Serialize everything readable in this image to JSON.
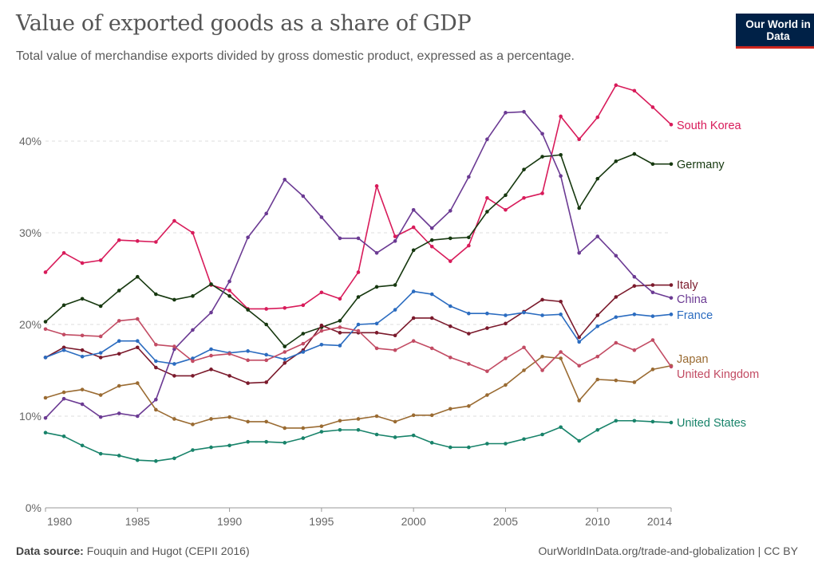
{
  "header": {
    "title": "Value of exported goods as a share of GDP",
    "subtitle": "Total value of merchandise exports divided by gross domestic product, expressed as a percentage.",
    "logo_text": "Our World in Data"
  },
  "footer": {
    "source_label": "Data source:",
    "source_text": "Fouquin and Hugot (CEPII 2016)",
    "url_text": "OurWorldInData.org/trade-and-globalization | CC BY"
  },
  "chart_data": {
    "type": "line",
    "title": "Value of exported goods as a share of GDP",
    "xlabel": "",
    "ylabel": "",
    "xlim": [
      1980,
      2014
    ],
    "ylim": [
      0,
      46
    ],
    "grid": "horizontal dashed",
    "legend": "right, inline labels at line ends",
    "x_ticks": [
      "1980",
      "1985",
      "1990",
      "1995",
      "2000",
      "2005",
      "2010",
      "2014"
    ],
    "x_tick_values": [
      1980,
      1985,
      1990,
      1995,
      2000,
      2005,
      2010,
      2014
    ],
    "y_ticks": [
      "0%",
      "10%",
      "20%",
      "30%",
      "40%"
    ],
    "y_tick_values": [
      0,
      10,
      20,
      30,
      40
    ],
    "x": [
      1980,
      1981,
      1982,
      1983,
      1984,
      1985,
      1986,
      1987,
      1988,
      1989,
      1990,
      1991,
      1992,
      1993,
      1994,
      1995,
      1996,
      1997,
      1998,
      1999,
      2000,
      2001,
      2002,
      2003,
      2004,
      2005,
      2006,
      2007,
      2008,
      2009,
      2010,
      2011,
      2012,
      2013,
      2014
    ],
    "series": [
      {
        "name": "South Korea",
        "color": "#d81b5a",
        "values": [
          25.7,
          27.8,
          26.7,
          27.0,
          29.2,
          29.1,
          29.0,
          31.3,
          30.0,
          24.3,
          23.7,
          21.7,
          21.7,
          21.8,
          22.1,
          23.5,
          22.8,
          25.7,
          35.1,
          29.6,
          30.6,
          28.5,
          26.9,
          28.6,
          33.8,
          32.5,
          33.8,
          34.3,
          42.7,
          40.2,
          42.6,
          46.1,
          45.5,
          43.7,
          41.8
        ]
      },
      {
        "name": "Germany",
        "color": "#16380f",
        "values": [
          20.3,
          22.1,
          22.8,
          22.0,
          23.7,
          25.2,
          23.3,
          22.7,
          23.1,
          24.4,
          23.1,
          21.6,
          20.0,
          17.6,
          19.0,
          19.7,
          20.4,
          23.0,
          24.1,
          24.3,
          28.1,
          29.2,
          29.4,
          29.5,
          32.3,
          34.1,
          36.9,
          38.3,
          38.5,
          32.7,
          35.9,
          37.8,
          38.6,
          37.5,
          37.5
        ]
      },
      {
        "name": "Italy",
        "color": "#7b1a2c",
        "values": [
          16.4,
          17.5,
          17.2,
          16.4,
          16.8,
          17.5,
          15.3,
          14.4,
          14.4,
          15.1,
          14.4,
          13.6,
          13.7,
          15.8,
          17.2,
          19.9,
          19.1,
          19.1,
          19.1,
          18.8,
          20.7,
          20.7,
          19.8,
          19.0,
          19.6,
          20.1,
          21.4,
          22.7,
          22.5,
          18.6,
          21.0,
          23.0,
          24.2,
          24.3,
          24.3
        ]
      },
      {
        "name": "China",
        "color": "#6b3a93",
        "values": [
          9.8,
          11.9,
          11.3,
          9.9,
          10.3,
          10.0,
          11.8,
          17.3,
          19.4,
          21.3,
          24.7,
          29.5,
          32.1,
          35.8,
          34.0,
          31.7,
          29.4,
          29.4,
          27.8,
          29.1,
          32.5,
          30.5,
          32.4,
          36.1,
          40.2,
          43.1,
          43.2,
          40.8,
          36.2,
          27.8,
          29.6,
          27.5,
          25.2,
          23.5,
          22.9
        ]
      },
      {
        "name": "France",
        "color": "#2b6cc0",
        "values": [
          16.4,
          17.2,
          16.5,
          16.9,
          18.2,
          18.2,
          16.0,
          15.7,
          16.3,
          17.3,
          16.9,
          17.1,
          16.7,
          16.2,
          17.0,
          17.8,
          17.7,
          20.0,
          20.1,
          21.6,
          23.6,
          23.3,
          22.0,
          21.2,
          21.2,
          21.0,
          21.3,
          21.0,
          21.1,
          18.1,
          19.8,
          20.8,
          21.1,
          20.9,
          21.1
        ]
      },
      {
        "name": "Japan",
        "color": "#9a6b32",
        "values": [
          12.0,
          12.6,
          12.9,
          12.3,
          13.3,
          13.6,
          10.7,
          9.7,
          9.1,
          9.7,
          9.9,
          9.4,
          9.4,
          8.7,
          8.7,
          8.9,
          9.5,
          9.7,
          10.0,
          9.4,
          10.1,
          10.1,
          10.8,
          11.1,
          12.3,
          13.4,
          15.0,
          16.5,
          16.3,
          11.7,
          14.0,
          13.9,
          13.7,
          15.1,
          15.5
        ]
      },
      {
        "name": "United Kingdom",
        "color": "#c24b63",
        "values": [
          19.5,
          18.9,
          18.8,
          18.7,
          20.4,
          20.6,
          17.8,
          17.6,
          16.0,
          16.6,
          16.8,
          16.1,
          16.1,
          17.0,
          17.9,
          19.3,
          19.7,
          19.3,
          17.4,
          17.2,
          18.2,
          17.4,
          16.4,
          15.7,
          14.9,
          16.3,
          17.5,
          15.0,
          17.0,
          15.5,
          16.5,
          18.0,
          17.2,
          18.3,
          15.4
        ]
      },
      {
        "name": "United States",
        "color": "#18836a",
        "values": [
          8.2,
          7.8,
          6.8,
          5.9,
          5.7,
          5.2,
          5.1,
          5.4,
          6.3,
          6.6,
          6.8,
          7.2,
          7.2,
          7.1,
          7.6,
          8.3,
          8.5,
          8.5,
          8.0,
          7.7,
          7.9,
          7.1,
          6.6,
          6.6,
          7.0,
          7.0,
          7.5,
          8.0,
          8.8,
          7.3,
          8.5,
          9.5,
          9.5,
          9.4,
          9.3
        ]
      }
    ]
  }
}
